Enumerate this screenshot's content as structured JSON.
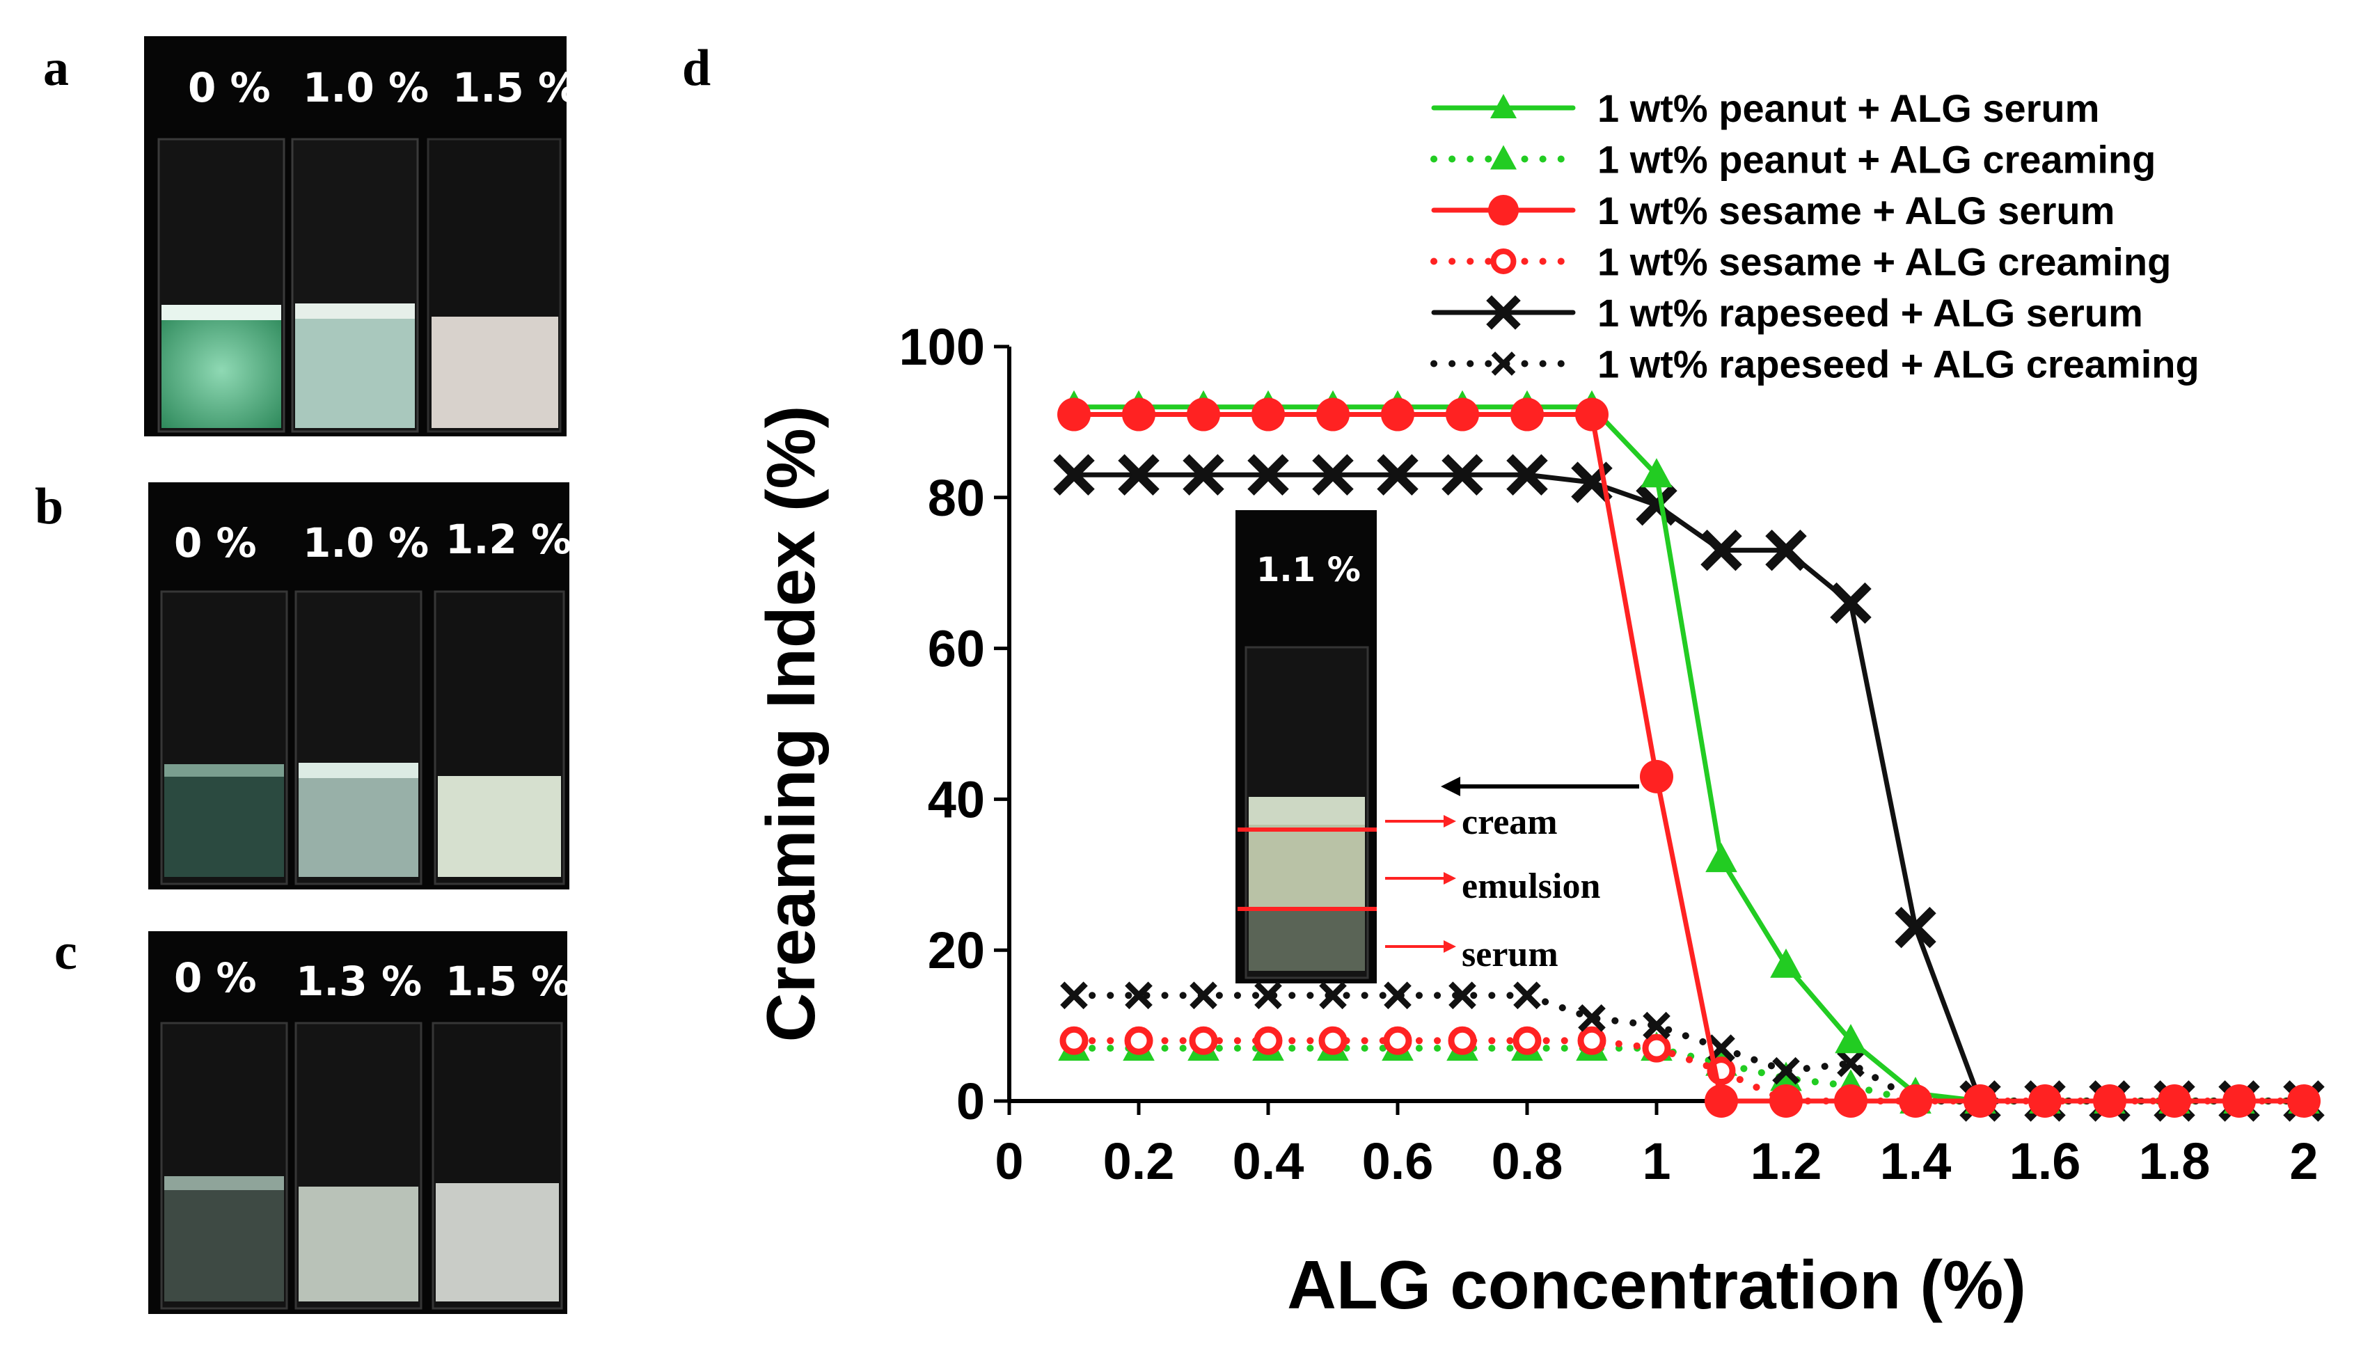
{
  "panels": {
    "a": {
      "letter": "a",
      "labels": [
        "0 %",
        "1.0 %",
        "1.5 %"
      ]
    },
    "b": {
      "letter": "b",
      "labels": [
        "0 %",
        "1.0 %",
        "1.2 %"
      ]
    },
    "c": {
      "letter": "c",
      "labels": [
        "0 %",
        "1.3 %",
        "1.5 %"
      ]
    },
    "d": {
      "letter": "d"
    }
  },
  "inset": {
    "label": "1.1 %",
    "layers": [
      "cream",
      "emulsion",
      "serum"
    ]
  },
  "colors": {
    "peanut": "#22cc22",
    "sesame": "#ff2222",
    "rapeseed": "#111111",
    "inset_line": "#ff2222"
  },
  "chart_data": {
    "type": "line",
    "xlabel": "ALG concentration (%)",
    "ylabel": "Creaming Index (%)",
    "xlim": [
      0,
      2
    ],
    "ylim": [
      0,
      100
    ],
    "xticks": [
      "0",
      "0.2",
      "0.4",
      "0.6",
      "0.8",
      "1",
      "1.2",
      "1.4",
      "1.6",
      "1.8",
      "2"
    ],
    "yticks": [
      "0",
      "20",
      "40",
      "60",
      "80",
      "100"
    ],
    "x": [
      0.1,
      0.2,
      0.3,
      0.4,
      0.5,
      0.6,
      0.7,
      0.8,
      0.9,
      1.0,
      1.1,
      1.2,
      1.3,
      1.4,
      1.5,
      1.6,
      1.7,
      1.8,
      1.9,
      2.0
    ],
    "legend_position": "top-right",
    "series": [
      {
        "name": "1 wt% peanut + ALG serum",
        "oil": "peanut",
        "style": "solid",
        "marker": "triangle",
        "values": [
          92,
          92,
          92,
          92,
          92,
          92,
          92,
          92,
          92,
          83,
          32,
          18,
          8,
          1,
          0,
          0,
          0,
          0,
          0,
          0
        ]
      },
      {
        "name": "1 wt% peanut + ALG creaming",
        "oil": "peanut",
        "style": "dotted",
        "marker": "triangle",
        "values": [
          7,
          7,
          7,
          7,
          7,
          7,
          7,
          7,
          7,
          7,
          5,
          3,
          2,
          0,
          0,
          0,
          0,
          0,
          0,
          0
        ]
      },
      {
        "name": "1 wt% sesame + ALG serum",
        "oil": "sesame",
        "style": "solid",
        "marker": "circle",
        "values": [
          91,
          91,
          91,
          91,
          91,
          91,
          91,
          91,
          91,
          43,
          0,
          0,
          0,
          0,
          0,
          0,
          0,
          0,
          0,
          0
        ]
      },
      {
        "name": "1 wt% sesame + ALG creaming",
        "oil": "sesame",
        "style": "dotted",
        "marker": "open-circle",
        "values": [
          8,
          8,
          8,
          8,
          8,
          8,
          8,
          8,
          8,
          7,
          4,
          0,
          0,
          0,
          0,
          0,
          0,
          0,
          0,
          0
        ]
      },
      {
        "name": "1 wt% rapeseed + ALG serum",
        "oil": "rapeseed",
        "style": "solid",
        "marker": "x",
        "values": [
          83,
          83,
          83,
          83,
          83,
          83,
          83,
          83,
          82,
          79,
          73,
          73,
          66,
          23,
          0,
          0,
          0,
          0,
          0,
          0
        ]
      },
      {
        "name": "1 wt% rapeseed + ALG creaming",
        "oil": "rapeseed",
        "style": "dotted",
        "marker": "x",
        "values": [
          14,
          14,
          14,
          14,
          14,
          14,
          14,
          14,
          11,
          10,
          7,
          4,
          5,
          0,
          0,
          0,
          0,
          0,
          0,
          0
        ]
      }
    ]
  }
}
